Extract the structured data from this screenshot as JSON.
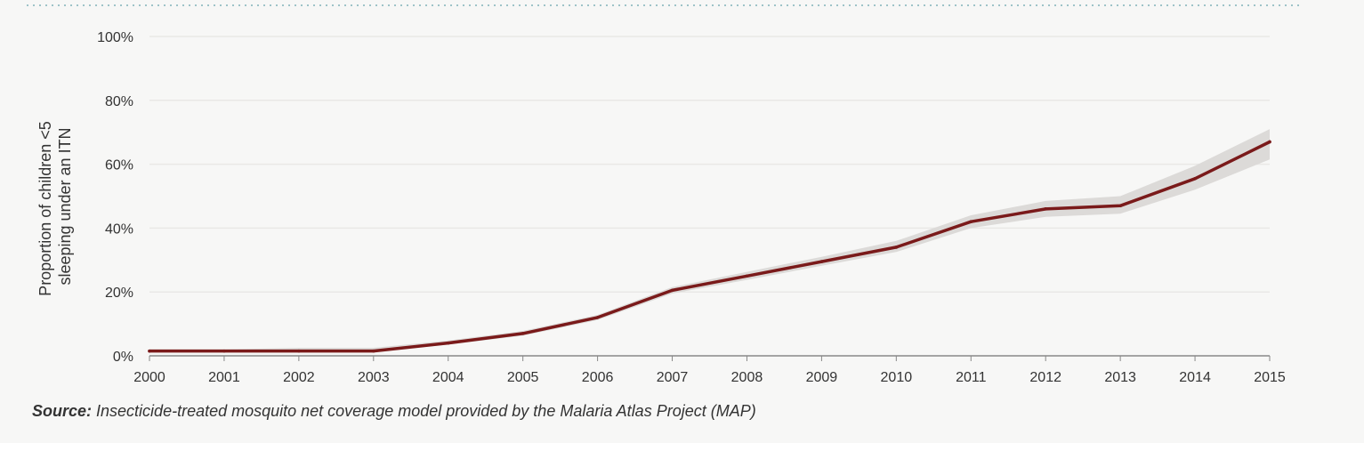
{
  "colors": {
    "line": "#7a1a1a",
    "band": "#dcdad8",
    "grid": "#e9e8e6",
    "axis": "#888888",
    "dotted_rule": "#9ec3c8"
  },
  "chart_data": {
    "type": "line",
    "title": "",
    "xlabel": "",
    "ylabel_lines": [
      "Proportion of children <5",
      "sleeping under an ITN"
    ],
    "x": [
      2000,
      2001,
      2002,
      2003,
      2004,
      2005,
      2006,
      2007,
      2008,
      2009,
      2010,
      2011,
      2012,
      2013,
      2014,
      2015
    ],
    "x_tick_labels": [
      "2000",
      "2001",
      "2002",
      "2003",
      "2004",
      "2005",
      "2006",
      "2007",
      "2008",
      "2009",
      "2010",
      "2011",
      "2012",
      "2013",
      "2014",
      "2015"
    ],
    "series": [
      {
        "values": [
          1.5,
          1.5,
          1.5,
          1.5,
          4,
          7,
          12,
          20.5,
          25,
          29.5,
          34,
          42,
          46,
          47,
          55.5,
          67
        ],
        "lower": [
          1.2,
          1.2,
          1.2,
          1.2,
          3.5,
          6.3,
          11.2,
          19.5,
          23.8,
          28.2,
          32.5,
          40,
          43.5,
          44.5,
          52,
          61.5
        ],
        "upper": [
          2.0,
          2.0,
          2.5,
          2.5,
          4.8,
          7.8,
          12.8,
          21.5,
          26.3,
          31,
          36,
          44,
          48.5,
          50,
          59.5,
          71
        ]
      }
    ],
    "ylim": [
      0,
      100
    ],
    "y_ticks": [
      0,
      20,
      40,
      60,
      80,
      100
    ],
    "y_tick_labels": [
      "0%",
      "20%",
      "40%",
      "60%",
      "80%",
      "100%"
    ],
    "grid": true
  },
  "source": {
    "label": "Source:",
    "text": " Insecticide-treated mosquito net coverage model provided by the Malaria Atlas Project (MAP)"
  }
}
